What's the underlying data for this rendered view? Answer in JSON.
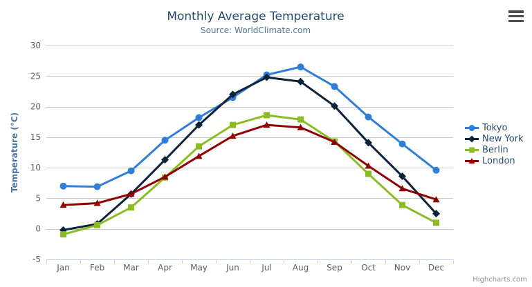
{
  "chart_data": {
    "type": "line",
    "title": "Monthly Average Temperature",
    "subtitle": "Source: WorldClimate.com",
    "categories": [
      "Jan",
      "Feb",
      "Mar",
      "Apr",
      "May",
      "Jun",
      "Jul",
      "Aug",
      "Sep",
      "Oct",
      "Nov",
      "Dec"
    ],
    "xlabel": "",
    "ylabel": "Temperature (°C)",
    "ylim": [
      -5,
      30
    ],
    "yticks": [
      -5,
      0,
      5,
      10,
      15,
      20,
      25,
      30
    ],
    "grid": true,
    "legend_position": "right",
    "series": [
      {
        "name": "Tokyo",
        "color": "#2f7ed8",
        "marker": "circle",
        "values": [
          7.0,
          6.9,
          9.5,
          14.5,
          18.2,
          21.5,
          25.2,
          26.5,
          23.3,
          18.3,
          13.9,
          9.6
        ]
      },
      {
        "name": "New York",
        "color": "#0d233a",
        "marker": "diamond",
        "values": [
          -0.2,
          0.8,
          5.7,
          11.3,
          17.0,
          22.0,
          24.8,
          24.1,
          20.1,
          14.1,
          8.6,
          2.5
        ]
      },
      {
        "name": "Berlin",
        "color": "#8bbc21",
        "marker": "square",
        "values": [
          -0.9,
          0.6,
          3.5,
          8.4,
          13.5,
          17.0,
          18.6,
          17.9,
          14.3,
          9.0,
          3.9,
          1.0
        ]
      },
      {
        "name": "London",
        "color": "#910000",
        "marker": "triangle",
        "values": [
          3.9,
          4.2,
          5.7,
          8.5,
          11.9,
          15.2,
          17.0,
          16.6,
          14.2,
          10.3,
          6.6,
          4.8
        ]
      }
    ]
  },
  "styles": {
    "grid_color": "#c9c9c9",
    "axis_line_color": "#c0d0e0",
    "title_color": "#274b6d",
    "subtitle_color": "#4d759e",
    "label_color": "#606060",
    "legend_text_color": "#274b6d"
  },
  "credit_label": "Highcharts.com"
}
